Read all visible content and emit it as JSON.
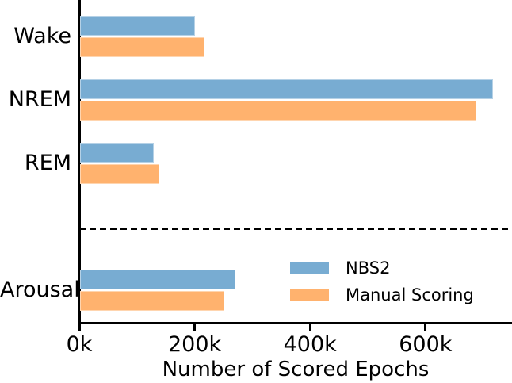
{
  "chart_data": {
    "type": "bar",
    "orientation": "horizontal",
    "title": "",
    "xlabel": "Number of Scored Epochs",
    "ylabel": "",
    "unit": "epochs (values in thousands, k)",
    "categories": [
      "Wake",
      "NREM",
      "REM",
      "Arousal"
    ],
    "series": [
      {
        "name": "NBS2",
        "color": "#78ACD2",
        "values_k": [
          200,
          716,
          128,
          270
        ]
      },
      {
        "name": "Manual Scoring",
        "color": "#FFB26E",
        "values_k": [
          217,
          687,
          138,
          250
        ]
      }
    ],
    "xlim_k": [
      0,
      750
    ],
    "x_ticks": [
      {
        "value_k": 0,
        "label": "0k"
      },
      {
        "value_k": 200,
        "label": "200k"
      },
      {
        "value_k": 400,
        "label": "400k"
      },
      {
        "value_k": 600,
        "label": "600k"
      }
    ],
    "grid": false,
    "legend_position": "inside lower right",
    "separator_note": "horizontal dashed black line separating sleep stages (Wake/NREM/REM) from Arousal",
    "axis_color": "#000000",
    "background_color": "#ffffff"
  }
}
